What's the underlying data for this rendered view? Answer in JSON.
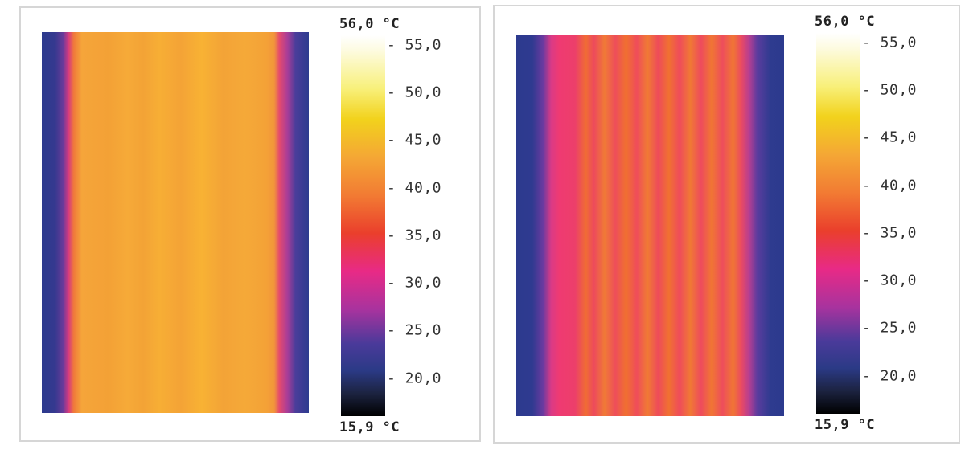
{
  "panels": [
    {
      "scale_max": "56,0 °C",
      "scale_min": "15,9 °C",
      "ticks": [
        "- 55,0",
        "- 50,0",
        "- 45,0",
        "- 40,0",
        "- 35,0",
        "- 30,0",
        "- 25,0",
        "- 20,0"
      ]
    },
    {
      "scale_max": "56,0 °C",
      "scale_min": "15,9 °C",
      "ticks": [
        "- 55,0",
        "- 50,0",
        "- 45,0",
        "- 40,0",
        "- 35,0",
        "- 30,0",
        "- 25,0",
        "- 20,0"
      ]
    }
  ],
  "colors": {
    "cold": "#2c3a8e",
    "warm_left": "#f5a53a",
    "warm_right": "#ef3a72",
    "hot_band": "#f06c34",
    "frame": "#d6d6d6"
  }
}
